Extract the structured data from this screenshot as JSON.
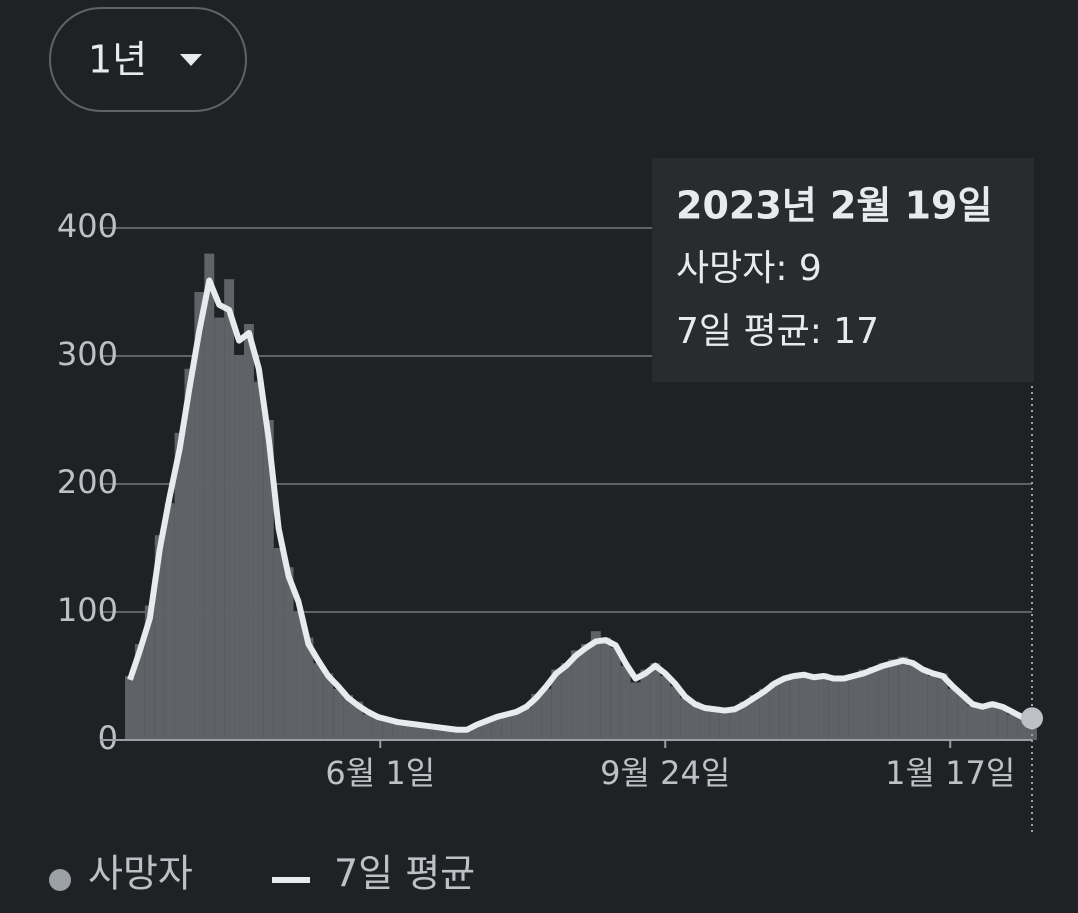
{
  "chart_data": {
    "type": "bar",
    "range_button": "1년",
    "x": [
      0,
      4,
      8,
      12,
      16,
      20,
      24,
      28,
      32,
      36,
      40,
      44,
      48,
      52,
      56,
      60,
      64,
      68,
      72,
      76,
      80,
      84,
      88,
      92,
      96,
      100,
      104,
      108,
      112,
      116,
      120,
      124,
      128,
      132,
      136,
      140,
      144,
      148,
      152,
      156,
      160,
      164,
      168,
      172,
      176,
      180,
      184,
      188,
      192,
      196,
      200,
      204,
      208,
      212,
      216,
      220,
      224,
      228,
      232,
      236,
      240,
      244,
      248,
      252,
      256,
      260,
      264,
      268,
      272,
      276,
      280,
      284,
      288,
      292,
      296,
      300,
      304,
      308,
      312,
      316,
      320,
      324,
      328,
      332,
      336,
      340,
      344,
      348,
      352,
      356,
      360,
      364
    ],
    "series": [
      {
        "name": "사망자",
        "type": "bar",
        "color": "#5f6368",
        "values": [
          50,
          75,
          105,
          160,
          185,
          240,
          290,
          350,
          380,
          330,
          360,
          300,
          325,
          280,
          250,
          150,
          135,
          100,
          80,
          60,
          52,
          40,
          35,
          30,
          20,
          18,
          17,
          15,
          12,
          13,
          10,
          11,
          9,
          8,
          7,
          13,
          14,
          19,
          21,
          23,
          25,
          36,
          40,
          55,
          60,
          70,
          75,
          85,
          80,
          72,
          58,
          45,
          55,
          60,
          50,
          42,
          33,
          30,
          24,
          26,
          22,
          25,
          30,
          35,
          40,
          45,
          47,
          52,
          50,
          48,
          52,
          46,
          50,
          49,
          55,
          57,
          60,
          63,
          65,
          58,
          55,
          50,
          52,
          40,
          36,
          27,
          28,
          30,
          25,
          20,
          19,
          9
        ]
      },
      {
        "name": "7일 평균",
        "type": "line",
        "color": "#e8eaed",
        "values": [
          47,
          70,
          95,
          149,
          190,
          227,
          275,
          320,
          359,
          340,
          336,
          312,
          318,
          290,
          235,
          165,
          128,
          108,
          75,
          62,
          50,
          42,
          33,
          27,
          22,
          18,
          16,
          14,
          13,
          12,
          11,
          10,
          9,
          8,
          8,
          12,
          15,
          18,
          20,
          22,
          26,
          33,
          42,
          52,
          58,
          66,
          72,
          77,
          78,
          74,
          60,
          48,
          52,
          58,
          52,
          44,
          34,
          28,
          25,
          24,
          23,
          24,
          28,
          33,
          38,
          44,
          48,
          50,
          51,
          49,
          50,
          48,
          48,
          50,
          52,
          55,
          58,
          60,
          62,
          60,
          55,
          52,
          50,
          42,
          35,
          28,
          26,
          28,
          26,
          22,
          18,
          17
        ]
      }
    ],
    "xlim": [
      0,
      364
    ],
    "xticks": [
      {
        "value": 101,
        "label": "6월 1일"
      },
      {
        "value": 216,
        "label": "9월 24일"
      },
      {
        "value": 331,
        "label": "1월 17일"
      }
    ],
    "ylim": [
      0,
      450
    ],
    "yticks": [
      0,
      100,
      200,
      300,
      400
    ],
    "grid": true,
    "tooltip": {
      "title": "2023년 2월 19일",
      "lines": [
        "사망자: 9",
        "7일 평균: 17"
      ]
    }
  }
}
